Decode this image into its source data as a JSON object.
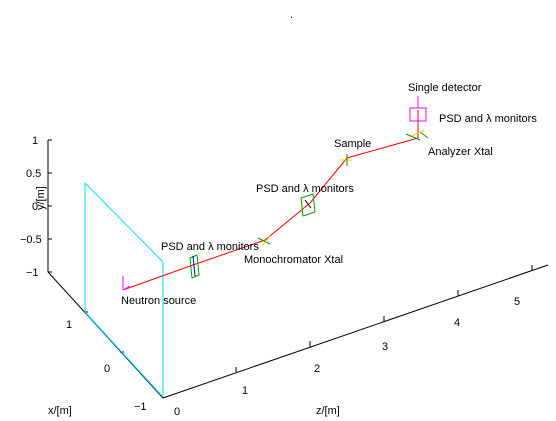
{
  "title": ".",
  "axes": {
    "y_label": "y/[m]",
    "x_label": "x/[m]",
    "z_label": "z/[m]",
    "y_ticks": [
      "1",
      "0.5",
      "0",
      "−0.5",
      "−1"
    ],
    "x_ticks": [
      "1",
      "0",
      "−1"
    ],
    "z_ticks": [
      "0",
      "1",
      "2",
      "3",
      "4",
      "5"
    ]
  },
  "components": {
    "source": "Neutron source",
    "mono_psd": "PSD and λ monitors",
    "monochromator": "Monochromator Xtal",
    "sample_psd": "PSD and λ monitors",
    "sample": "Sample",
    "analyzer": "Analyzer Xtal",
    "analyzer_psd": "PSD and λ monitors",
    "detector": "Single detector"
  },
  "colors": {
    "beam": "#ff0000",
    "box": "#00e0ff",
    "monitor": "#00a000",
    "marker": "#ff00ff",
    "crystal": "#ffcc00"
  }
}
